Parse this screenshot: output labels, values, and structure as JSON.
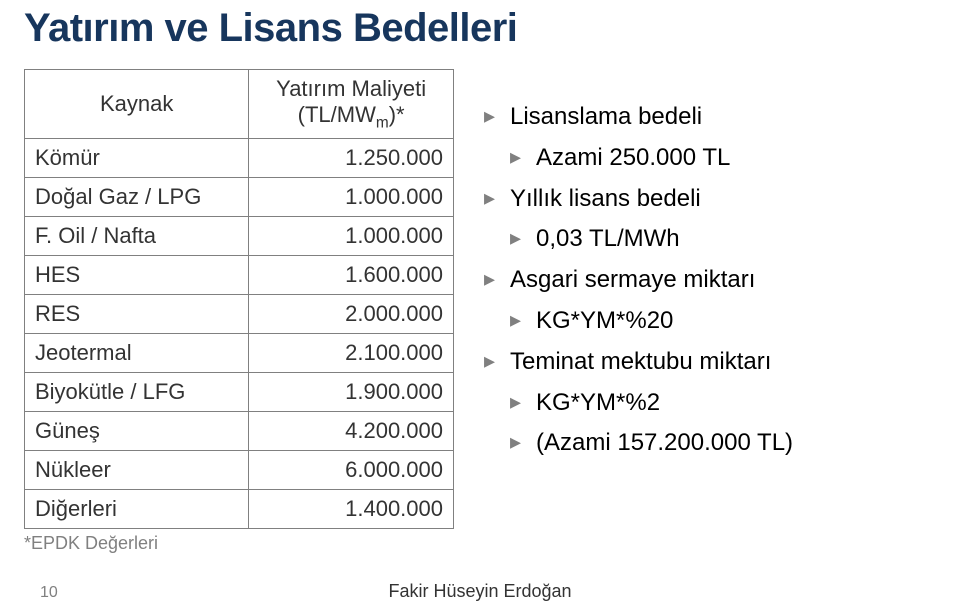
{
  "title": "Yatırım ve Lisans Bedelleri",
  "table": {
    "header_source": "Kaynak",
    "header_cost_line1": "Yatırım Maliyeti",
    "header_cost_line2": "(TL/MW",
    "header_cost_sub": "m",
    "header_cost_line3": ")*",
    "rows": [
      {
        "src": "Kömür",
        "val": "1.250.000"
      },
      {
        "src": "Doğal Gaz / LPG",
        "val": "1.000.000"
      },
      {
        "src": "F. Oil / Nafta",
        "val": "1.000.000"
      },
      {
        "src": "HES",
        "val": "1.600.000"
      },
      {
        "src": "RES",
        "val": "2.000.000"
      },
      {
        "src": "Jeotermal",
        "val": "2.100.000"
      },
      {
        "src": "Biyokütle / LFG",
        "val": "1.900.000"
      },
      {
        "src": "Güneş",
        "val": "4.200.000"
      },
      {
        "src": "Nükleer",
        "val": "6.000.000"
      },
      {
        "src": "Diğerleri",
        "val": "1.400.000"
      }
    ],
    "footnote": "*EPDK Değerleri"
  },
  "bullets": {
    "b1": "Lisanslama bedeli",
    "b1a": "Azami 250.000 TL",
    "b2": "Yıllık lisans bedeli",
    "b2a": "0,03 TL/MWh",
    "b3": "Asgari sermaye miktarı",
    "b3a": "KG*YM*%20",
    "b4": "Teminat mektubu miktarı",
    "b4a": "KG*YM*%2",
    "b4b": "(Azami 157.200.000 TL)"
  },
  "page_number": "10",
  "author": "Fakir Hüseyin Erdoğan",
  "colors": {
    "title": "#17365d",
    "border": "#808080",
    "text": "#333333",
    "bullet_arrow": "#808080",
    "background": "#ffffff"
  }
}
